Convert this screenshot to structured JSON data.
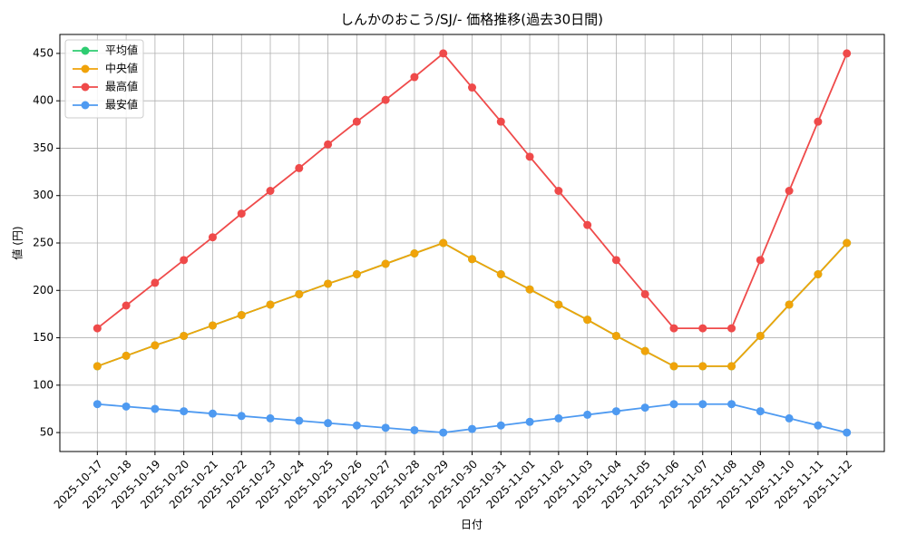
{
  "chart_data": {
    "type": "line",
    "title": "しんかのおこう/SJ/- 価格推移(過去30日間)",
    "x_label": "日付",
    "y_label": "値 (円)",
    "categories": [
      "2025-10-17",
      "2025-10-18",
      "2025-10-19",
      "2025-10-20",
      "2025-10-21",
      "2025-10-22",
      "2025-10-23",
      "2025-10-24",
      "2025-10-25",
      "2025-10-26",
      "2025-10-27",
      "2025-10-28",
      "2025-10-29",
      "2025-10-30",
      "2025-10-31",
      "2025-11-01",
      "2025-11-02",
      "2025-11-03",
      "2025-11-04",
      "2025-11-05",
      "2025-11-06",
      "2025-11-07",
      "2025-11-08",
      "2025-11-09",
      "2025-11-10",
      "2025-11-11",
      "2025-11-12"
    ],
    "series": [
      {
        "name": "平均値",
        "color": "#2ecc71",
        "values": [
          120,
          131,
          142,
          152,
          163,
          174,
          185,
          196,
          207,
          217,
          228,
          239,
          250,
          233,
          217,
          201,
          185,
          169,
          152,
          136,
          120,
          120,
          120,
          152,
          185,
          217,
          250
        ]
      },
      {
        "name": "中央値",
        "color": "#f0a30a",
        "values": [
          120,
          131,
          142,
          152,
          163,
          174,
          185,
          196,
          207,
          217,
          228,
          239,
          250,
          233,
          217,
          201,
          185,
          169,
          152,
          136,
          120,
          120,
          120,
          152,
          185,
          217,
          250
        ]
      },
      {
        "name": "最高値",
        "color": "#ef4a4a",
        "values": [
          160,
          184,
          208,
          232,
          256,
          281,
          305,
          329,
          354,
          378,
          401,
          425,
          450,
          414,
          378,
          341,
          305,
          269,
          232,
          196,
          160,
          160,
          160,
          232,
          305,
          378,
          450
        ]
      },
      {
        "name": "最安値",
        "color": "#4e9af1",
        "values": [
          80,
          77.5,
          75,
          72.5,
          70,
          67.5,
          65,
          62.5,
          60,
          57.5,
          55,
          52.5,
          50,
          53.8,
          57.5,
          61.3,
          65,
          68.8,
          72.5,
          76.3,
          80,
          80,
          80,
          72.5,
          65,
          57.5,
          50
        ]
      }
    ],
    "ylim": [
      30,
      470
    ],
    "yticks": [
      50,
      100,
      150,
      200,
      250,
      300,
      350,
      400,
      450
    ],
    "grid": true,
    "legend": "upper-left"
  }
}
